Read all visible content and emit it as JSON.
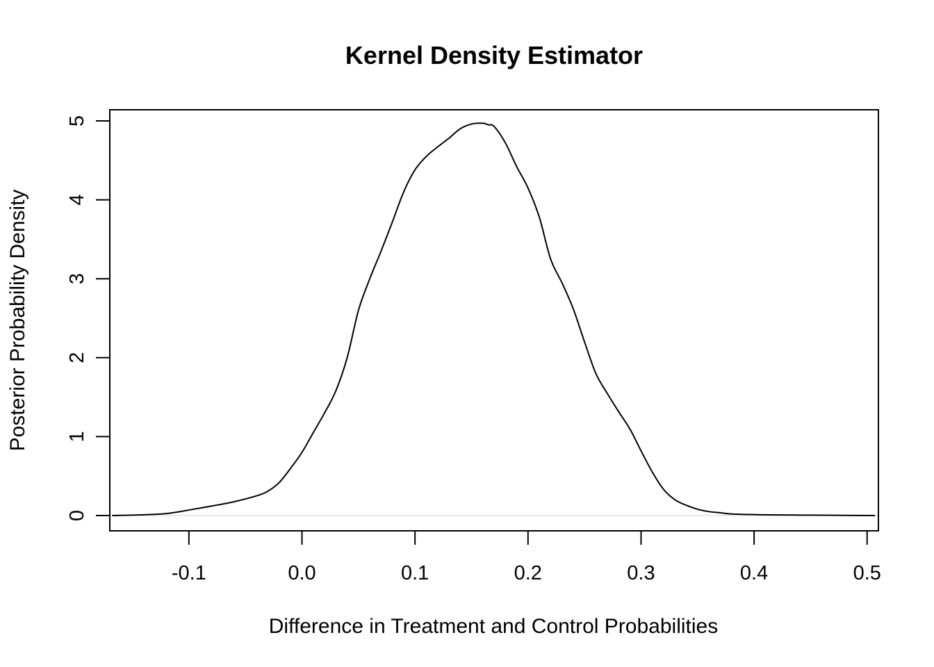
{
  "chart_data": {
    "type": "line",
    "title": "Kernel Density Estimator",
    "xlabel": "Difference in Treatment and Control Probabilities",
    "ylabel": "Posterior Probability Density",
    "xlim": [
      -0.17,
      0.51
    ],
    "ylim": [
      0,
      5
    ],
    "x_ticks": [
      -0.1,
      0.0,
      0.1,
      0.2,
      0.3,
      0.4,
      0.5
    ],
    "x_tick_labels": [
      "-0.1",
      "0.0",
      "0.1",
      "0.2",
      "0.3",
      "0.4",
      "0.5"
    ],
    "y_ticks": [
      0,
      1,
      2,
      3,
      4,
      5
    ],
    "y_tick_labels": [
      "0",
      "1",
      "2",
      "3",
      "4",
      "5"
    ],
    "grid": false,
    "legend": "none",
    "baseline": 0,
    "series": [
      {
        "name": "density",
        "x": [
          -0.168,
          -0.15,
          -0.13,
          -0.12,
          -0.11,
          -0.1,
          -0.08,
          -0.06,
          -0.04,
          -0.03,
          -0.02,
          -0.01,
          0.0,
          0.01,
          0.02,
          0.03,
          0.04,
          0.05,
          0.06,
          0.07,
          0.08,
          0.09,
          0.1,
          0.11,
          0.12,
          0.13,
          0.14,
          0.15,
          0.16,
          0.165,
          0.17,
          0.18,
          0.19,
          0.2,
          0.21,
          0.22,
          0.23,
          0.24,
          0.25,
          0.26,
          0.27,
          0.28,
          0.29,
          0.3,
          0.31,
          0.32,
          0.33,
          0.34,
          0.35,
          0.36,
          0.37,
          0.38,
          0.4,
          0.42,
          0.45,
          0.48,
          0.507
        ],
        "y": [
          0.0,
          0.005,
          0.015,
          0.025,
          0.045,
          0.07,
          0.12,
          0.175,
          0.25,
          0.31,
          0.42,
          0.6,
          0.8,
          1.05,
          1.3,
          1.58,
          2.0,
          2.6,
          3.0,
          3.35,
          3.72,
          4.1,
          4.38,
          4.55,
          4.67,
          4.78,
          4.9,
          4.96,
          4.97,
          4.95,
          4.93,
          4.72,
          4.42,
          4.15,
          3.78,
          3.25,
          2.95,
          2.62,
          2.2,
          1.8,
          1.55,
          1.32,
          1.1,
          0.82,
          0.55,
          0.33,
          0.2,
          0.13,
          0.08,
          0.05,
          0.035,
          0.02,
          0.012,
          0.008,
          0.005,
          0.002,
          0.0
        ]
      }
    ]
  }
}
